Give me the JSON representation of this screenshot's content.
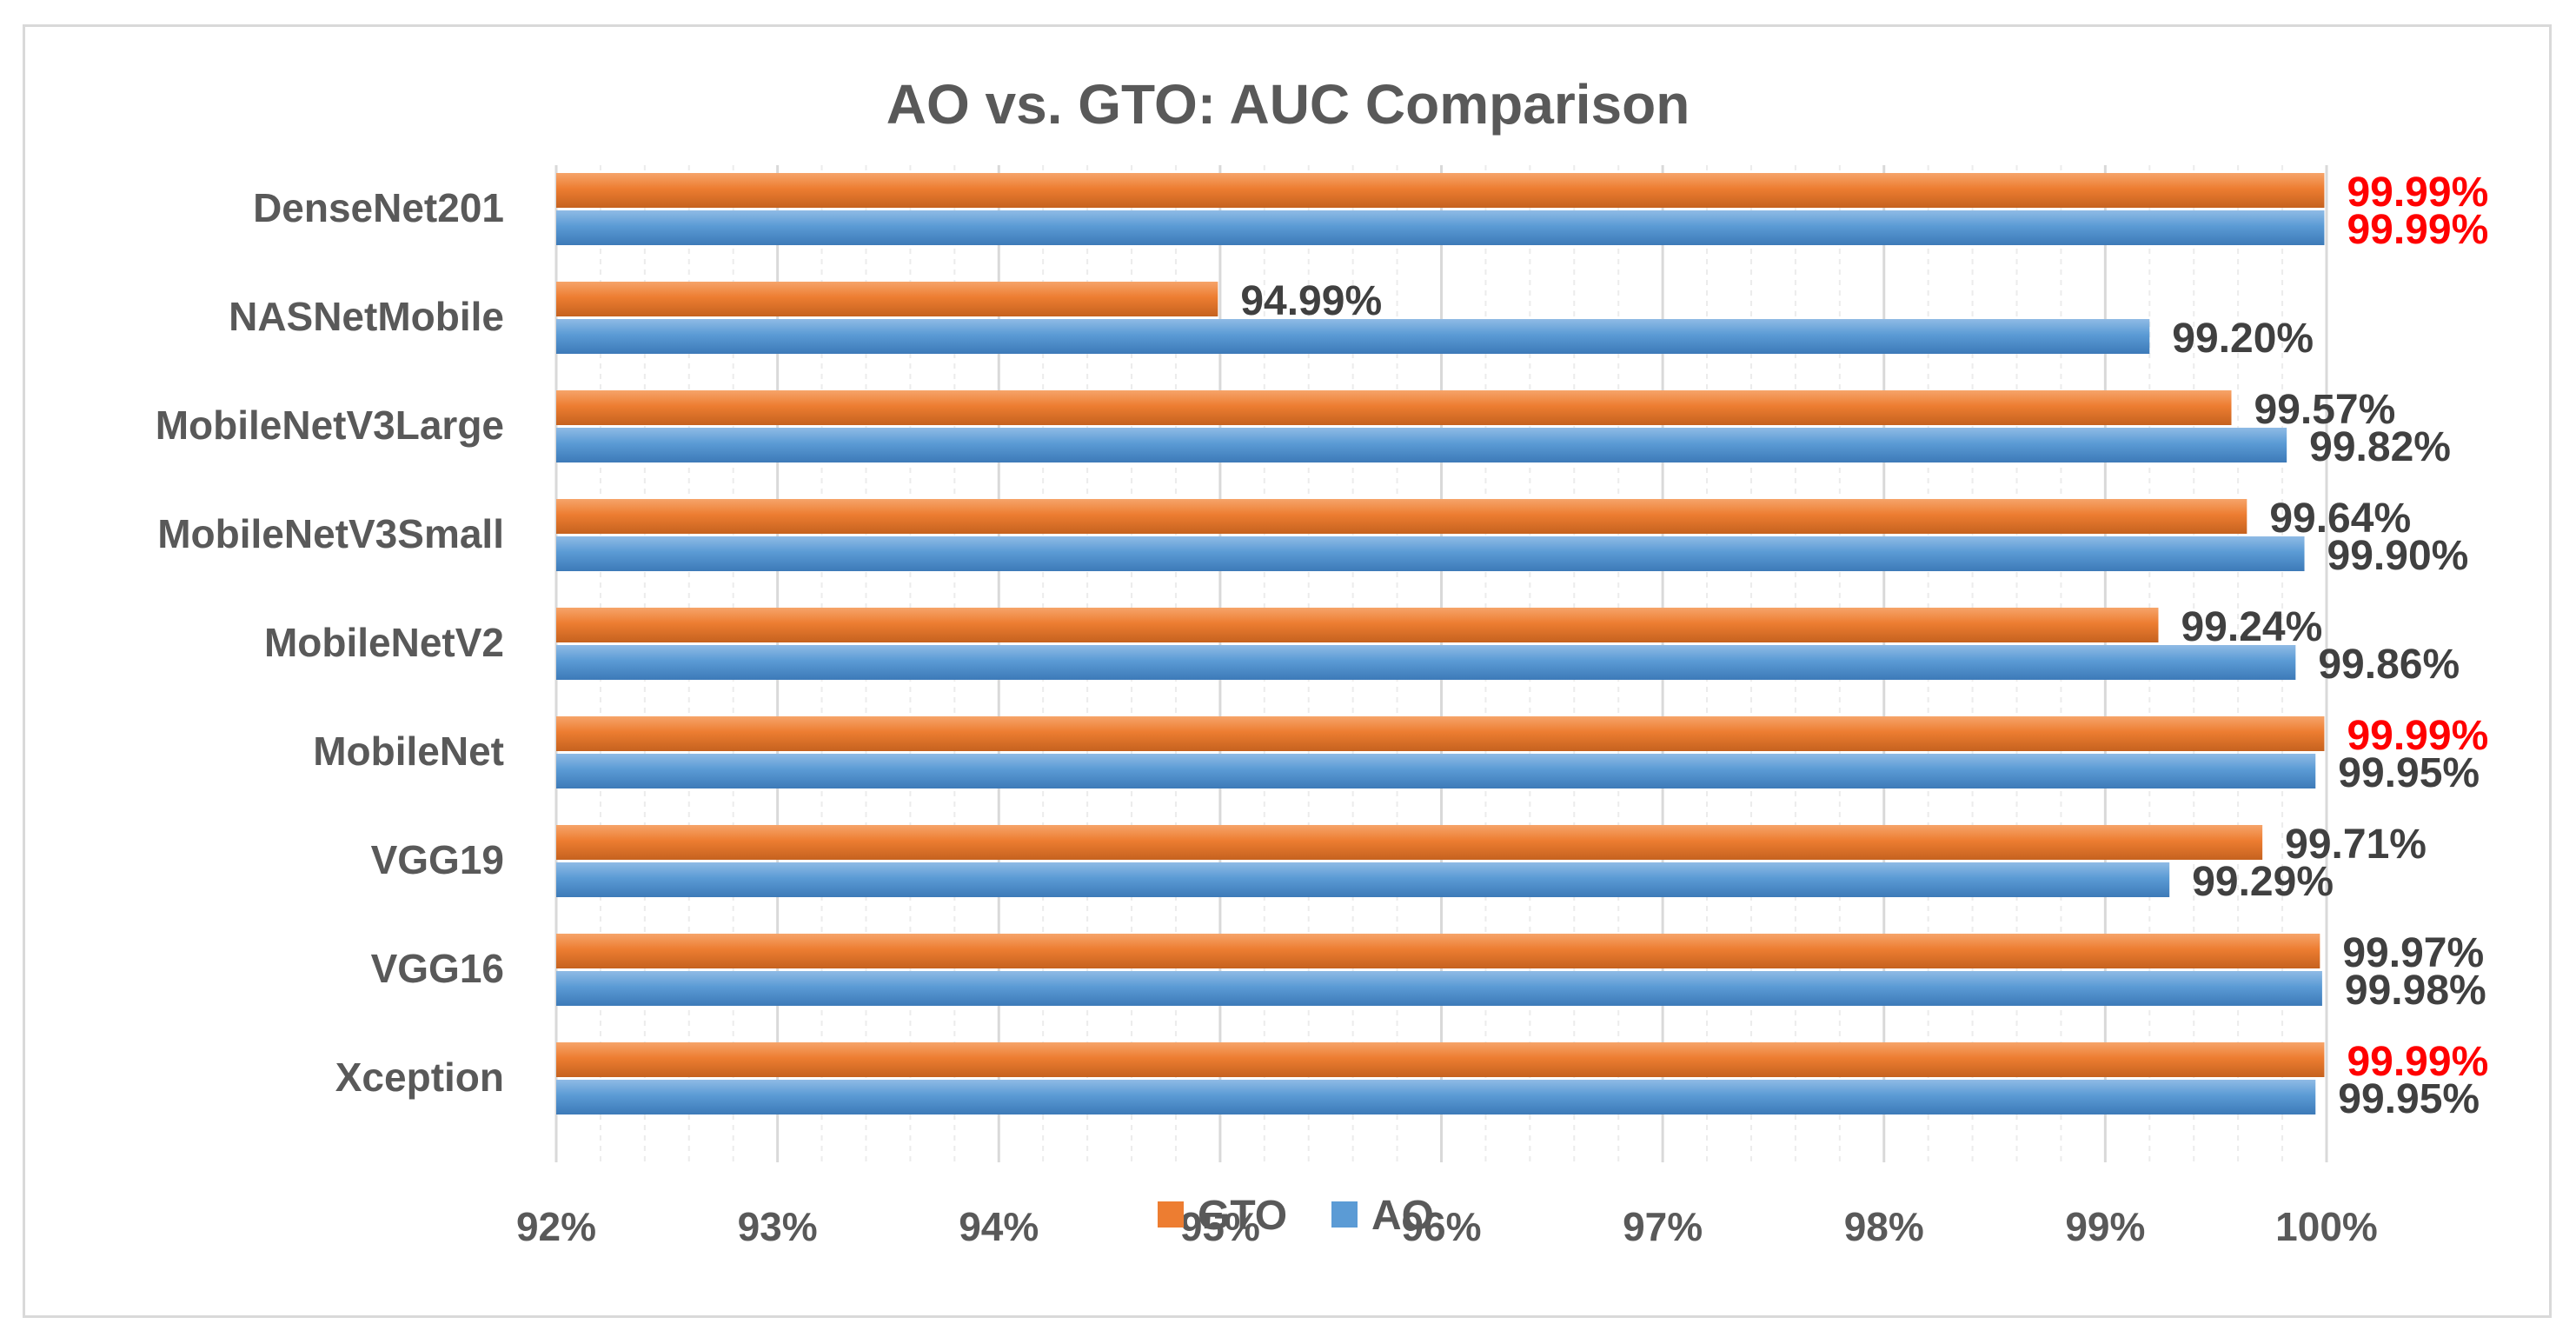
{
  "chart_data": {
    "type": "bar",
    "orientation": "horizontal",
    "title": "AO vs. GTO: AUC Comparison",
    "xlabel": "",
    "ylabel": "",
    "xlim": [
      92,
      100
    ],
    "x_ticks": [
      "92%",
      "93%",
      "94%",
      "95%",
      "96%",
      "97%",
      "98%",
      "99%",
      "100%"
    ],
    "grid": true,
    "legend_position": "bottom",
    "categories": [
      "DenseNet201",
      "NASNetMobile",
      "MobileNetV3Large",
      "MobileNetV3Small",
      "MobileNetV2",
      "MobileNet",
      "VGG19",
      "VGG16",
      "Xception"
    ],
    "series": [
      {
        "name": "GTO",
        "color": "#ed7d31",
        "values": [
          99.99,
          94.99,
          99.57,
          99.64,
          99.24,
          99.99,
          99.71,
          99.97,
          99.99
        ],
        "labels": [
          "99.99%",
          "94.99%",
          "99.57%",
          "99.64%",
          "99.24%",
          "99.99%",
          "99.71%",
          "99.97%",
          "99.99%"
        ],
        "label_colors": [
          "#ff0000",
          "#404040",
          "#404040",
          "#404040",
          "#404040",
          "#ff0000",
          "#404040",
          "#404040",
          "#ff0000"
        ]
      },
      {
        "name": "AO",
        "color": "#5b9bd5",
        "values": [
          99.99,
          99.2,
          99.82,
          99.9,
          99.86,
          99.95,
          99.29,
          99.98,
          99.95
        ],
        "labels": [
          "99.99%",
          "99.20%",
          "99.82%",
          "99.90%",
          "99.86%",
          "99.95%",
          "99.29%",
          "99.98%",
          "99.95%"
        ],
        "label_colors": [
          "#ff0000",
          "#404040",
          "#404040",
          "#404040",
          "#404040",
          "#404040",
          "#404040",
          "#404040",
          "#404040"
        ]
      }
    ]
  }
}
